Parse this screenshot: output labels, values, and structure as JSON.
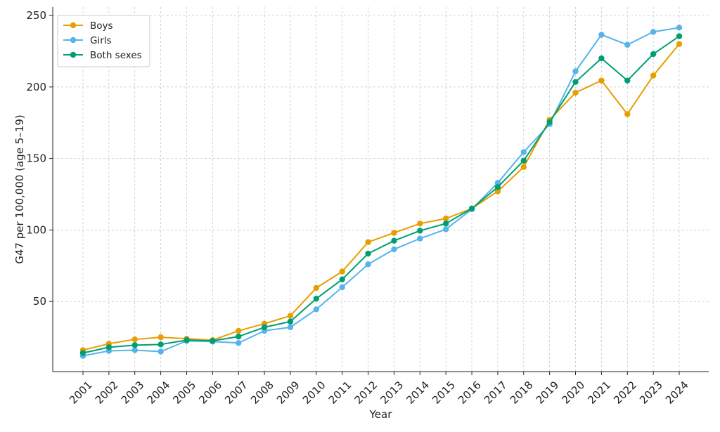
{
  "chart_data": {
    "type": "line",
    "title": "",
    "xlabel": "Year",
    "ylabel": "G47 per 100,000 (age 5–19)",
    "ylim": [
      1,
      250
    ],
    "yticks": [
      50,
      100,
      150,
      200,
      250
    ],
    "grid": true,
    "legend_position": "top-left",
    "categories": [
      "2001",
      "2002",
      "2003",
      "2004",
      "2005",
      "2006",
      "2007",
      "2008",
      "2009",
      "2010",
      "2011",
      "2012",
      "2013",
      "2014",
      "2015",
      "2016",
      "2017",
      "2018",
      "2019",
      "2020",
      "2021",
      "2022",
      "2023",
      "2024"
    ],
    "series": [
      {
        "name": "Boys",
        "color": "#E69F00",
        "values": [
          16,
          20.5,
          23.5,
          25,
          24,
          23,
          29.5,
          34.5,
          40,
          59.5,
          71,
          91.5,
          98,
          104.5,
          108,
          115,
          127,
          144,
          177,
          196,
          204.5,
          181,
          208,
          230
        ]
      },
      {
        "name": "Girls",
        "color": "#56B4E9",
        "values": [
          12,
          15.5,
          16,
          15,
          22.5,
          22,
          21,
          29.5,
          32,
          44.5,
          60,
          76,
          86.5,
          94,
          100.5,
          114.5,
          133,
          154.5,
          174,
          211,
          236.5,
          229.5,
          238.5,
          241.5
        ]
      },
      {
        "name": "Both sexes",
        "color": "#009E73",
        "values": [
          14,
          18,
          19.5,
          20,
          23,
          22.5,
          25.5,
          32,
          36,
          52,
          65.5,
          83.5,
          92.5,
          99.5,
          104.5,
          115,
          130,
          148.5,
          175.5,
          203.5,
          220,
          204.5,
          223,
          235.5
        ]
      }
    ]
  }
}
